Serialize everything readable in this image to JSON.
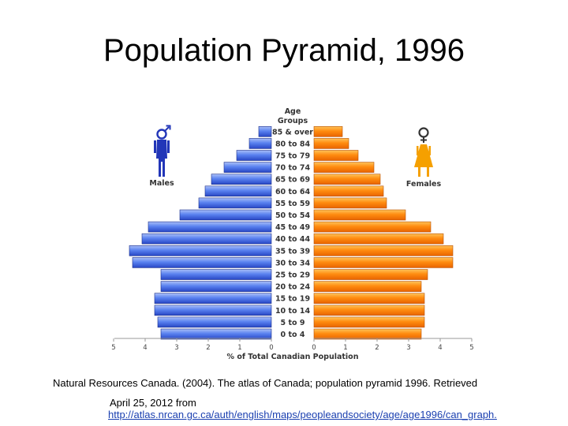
{
  "slide": {
    "title": "Population Pyramid, 1996"
  },
  "citation": {
    "line1": "Natural Resources Canada. (2004). The atlas of Canada; population pyramid 1996. Retrieved",
    "line2": "April 25, 2012 from",
    "url": "http://atlas.nrcan.gc.ca/auth/english/maps/peopleandsociety/age/age1996/can_graph."
  },
  "chart_data": {
    "type": "bar",
    "orientation": "horizontal-pyramid",
    "title": "",
    "categories_header": [
      "Age",
      "Groups"
    ],
    "categories": [
      "0 to 4",
      "5 to 9",
      "10 to 14",
      "15 to 19",
      "20 to 24",
      "25 to 29",
      "30 to 34",
      "35 to 39",
      "40 to 44",
      "45 to 49",
      "50 to 54",
      "55 to 59",
      "60 to 64",
      "65 to 69",
      "70 to 74",
      "75 to 79",
      "80 to 84",
      "85 & over"
    ],
    "series": [
      {
        "name": "Males",
        "values": [
          3.5,
          3.6,
          3.7,
          3.7,
          3.5,
          3.5,
          4.4,
          4.5,
          4.1,
          3.9,
          2.9,
          2.3,
          2.1,
          1.9,
          1.5,
          1.1,
          0.7,
          0.4
        ]
      },
      {
        "name": "Females",
        "values": [
          3.4,
          3.5,
          3.5,
          3.5,
          3.4,
          3.6,
          4.4,
          4.4,
          4.1,
          3.7,
          2.9,
          2.3,
          2.2,
          2.1,
          1.9,
          1.4,
          1.1,
          0.9
        ]
      }
    ],
    "xlabel": "% of Total Canadian Population",
    "ticks": [
      "5",
      "4",
      "3",
      "2",
      "1",
      "0"
    ],
    "xlim": [
      0,
      5
    ],
    "legend": {
      "male_label": "Males",
      "female_label": "Females"
    },
    "colors": {
      "male": "#3f6de8",
      "female": "#ff8c10",
      "male_symbol": "#2236b8",
      "female_symbol": "#f5a000"
    }
  }
}
